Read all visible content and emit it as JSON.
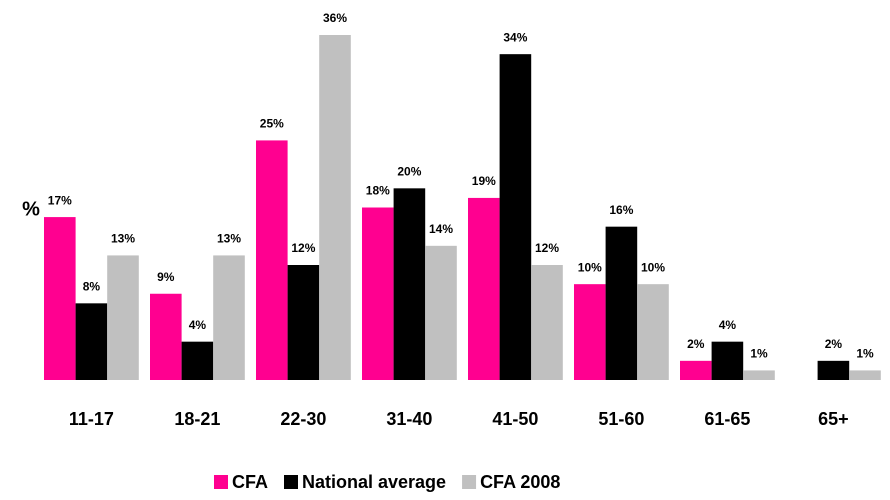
{
  "chart_data": {
    "type": "bar",
    "y_label": "%",
    "categories": [
      "11-17",
      "18-21",
      "22-30",
      "31-40",
      "41-50",
      "51-60",
      "61-65",
      "65+"
    ],
    "series": [
      {
        "name": "CFA",
        "color": "#ff0090",
        "values": [
          17,
          9,
          25,
          18,
          19,
          10,
          2,
          null
        ],
        "value_labels": [
          "17%",
          "9%",
          "25%",
          "18%",
          "19%",
          "10%",
          "2%",
          null
        ]
      },
      {
        "name": "National average",
        "color": "#000000",
        "values": [
          8,
          4,
          12,
          20,
          34,
          16,
          4,
          2
        ],
        "value_labels": [
          "8%",
          "4%",
          "12%",
          "20%",
          "34%",
          "16%",
          "4%",
          "2%"
        ]
      },
      {
        "name": "CFA 2008",
        "color": "#c0c0c0",
        "values": [
          13,
          13,
          36,
          14,
          12,
          10,
          1,
          1
        ],
        "value_labels": [
          "13%",
          "13%",
          "36%",
          "14%",
          "12%",
          "10%",
          "1%",
          "1%"
        ]
      }
    ],
    "ylim": [
      0,
      36
    ],
    "legend": "bottom"
  }
}
